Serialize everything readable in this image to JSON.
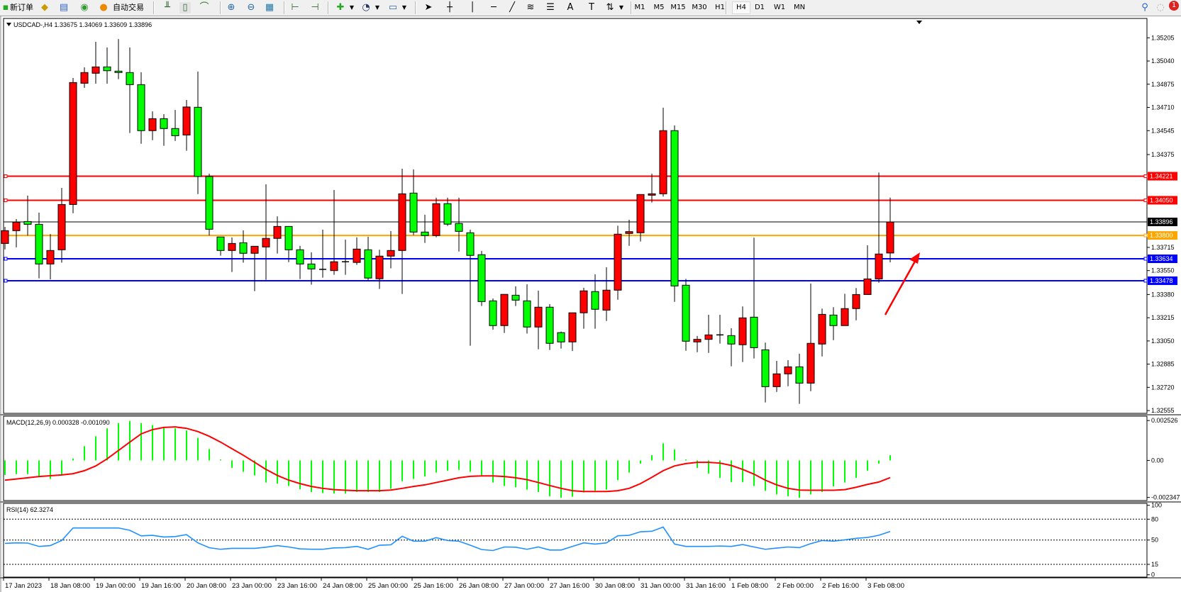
{
  "toolbar": {
    "new_order": "新订单",
    "auto_trading": "自动交易",
    "timeframes": [
      "M1",
      "M5",
      "M15",
      "M30",
      "H1",
      "H4",
      "D1",
      "W1",
      "MN"
    ],
    "active_timeframe": "H4",
    "notification_count": "1",
    "icons": [
      "new-order-icon",
      "gold-icon",
      "history-icon",
      "signal-icon",
      "auto-trading-icon",
      "bar-chart-icon",
      "candlestick-icon",
      "line-chart-icon",
      "zoom-in-icon",
      "zoom-out-icon",
      "tile-windows-icon",
      "chart-shift-icon",
      "autoscroll-icon",
      "indicators-icon",
      "periods-icon",
      "templates-icon",
      "cursor-icon",
      "crosshair-icon",
      "vertical-line-icon",
      "horizontal-line-icon",
      "trendline-icon",
      "fibonacci-icon",
      "fibo-fan-icon",
      "text-icon",
      "text-label-icon",
      "arrows-icon",
      "search-icon",
      "notification-icon"
    ]
  },
  "chart": {
    "header": "USDCAD-,H4  1.33675 1.34069 1.33609 1.33896",
    "symbol": "USDCAD-",
    "timeframe": "H4",
    "bull_color": "#ff0000",
    "bear_color": "#00ff00"
  },
  "chart_data": {
    "type": "candlestick",
    "ohlc_order": [
      "open",
      "high",
      "low",
      "close"
    ],
    "candles": [
      [
        1.33743,
        1.33861,
        1.33701,
        1.33834
      ],
      [
        1.33834,
        1.33916,
        1.33715,
        1.33894
      ],
      [
        1.33899,
        1.34083,
        1.33799,
        1.33879
      ],
      [
        1.33879,
        1.33962,
        1.33495,
        1.33597
      ],
      [
        1.33597,
        1.3381,
        1.33488,
        1.33693
      ],
      [
        1.33698,
        1.34138,
        1.33606,
        1.3402
      ],
      [
        1.3402,
        1.34919,
        1.33958,
        1.34887
      ],
      [
        1.34882,
        1.34995,
        1.34849,
        1.34958
      ],
      [
        1.34953,
        1.35176,
        1.34879,
        1.34998
      ],
      [
        1.34998,
        1.35136,
        1.34879,
        1.34971
      ],
      [
        1.34968,
        1.35196,
        1.34911,
        1.34958
      ],
      [
        1.34958,
        1.35136,
        1.34528,
        1.34872
      ],
      [
        1.34872,
        1.3496,
        1.34452,
        1.34545
      ],
      [
        1.34545,
        1.34682,
        1.34477,
        1.3463
      ],
      [
        1.3463,
        1.34662,
        1.34437,
        1.3456
      ],
      [
        1.3456,
        1.34692,
        1.34472,
        1.34509
      ],
      [
        1.34514,
        1.34763,
        1.34402,
        1.34713
      ],
      [
        1.34711,
        1.34965,
        1.34094,
        1.34219
      ],
      [
        1.34219,
        1.34239,
        1.338,
        1.33844
      ],
      [
        1.33789,
        1.33789,
        1.33656,
        1.33693
      ],
      [
        1.33693,
        1.33785,
        1.3354,
        1.33743
      ],
      [
        1.33748,
        1.33836,
        1.33606,
        1.33673
      ],
      [
        1.33673,
        1.33723,
        1.33404,
        1.33723
      ],
      [
        1.33718,
        1.34163,
        1.33484,
        1.33779
      ],
      [
        1.33779,
        1.33936,
        1.33671,
        1.33864
      ],
      [
        1.33864,
        1.33864,
        1.3361,
        1.33698
      ],
      [
        1.33698,
        1.33726,
        1.3349,
        1.33597
      ],
      [
        1.33597,
        1.3368,
        1.3345,
        1.33562
      ],
      [
        1.33559,
        1.33841,
        1.335,
        1.33559
      ],
      [
        1.3355,
        1.34123,
        1.3352,
        1.33613
      ],
      [
        1.33613,
        1.3377,
        1.3352,
        1.33613
      ],
      [
        1.33608,
        1.33786,
        1.33591,
        1.33703
      ],
      [
        1.33698,
        1.33791,
        1.3348,
        1.33497
      ],
      [
        1.33492,
        1.33698,
        1.3342,
        1.33653
      ],
      [
        1.33653,
        1.33831,
        1.33566,
        1.33693
      ],
      [
        1.33693,
        1.34274,
        1.33384,
        1.34096
      ],
      [
        1.34101,
        1.34269,
        1.33802,
        1.33824
      ],
      [
        1.33824,
        1.33947,
        1.33747,
        1.33799
      ],
      [
        1.33799,
        1.34068,
        1.33787,
        1.34026
      ],
      [
        1.34026,
        1.34068,
        1.33868,
        1.3388
      ],
      [
        1.33885,
        1.34068,
        1.33686,
        1.33829
      ],
      [
        1.33819,
        1.33841,
        1.33016,
        1.33658
      ],
      [
        1.33663,
        1.3369,
        1.33298,
        1.3333
      ],
      [
        1.33335,
        1.33352,
        1.3313,
        1.33159
      ],
      [
        1.33159,
        1.33381,
        1.33107,
        1.33381
      ],
      [
        1.33375,
        1.33438,
        1.33298,
        1.3334
      ],
      [
        1.33335,
        1.33453,
        1.33102,
        1.33149
      ],
      [
        1.33149,
        1.33408,
        1.32991,
        1.3329
      ],
      [
        1.3329,
        1.33312,
        1.32986,
        1.33033
      ],
      [
        1.33109,
        1.33117,
        1.32996,
        1.33043
      ],
      [
        1.33043,
        1.3325,
        1.32978,
        1.3325
      ],
      [
        1.3325,
        1.33428,
        1.33137,
        1.33406
      ],
      [
        1.33401,
        1.33524,
        1.33137,
        1.33275
      ],
      [
        1.33269,
        1.33574,
        1.33192,
        1.33411
      ],
      [
        1.33411,
        1.33869,
        1.33343,
        1.33809
      ],
      [
        1.33814,
        1.33911,
        1.33726,
        1.33827
      ],
      [
        1.33819,
        1.34091,
        1.33757,
        1.34091
      ],
      [
        1.34086,
        1.34239,
        1.34034,
        1.34096
      ],
      [
        1.34096,
        1.34708,
        1.34076,
        1.34545
      ],
      [
        1.34545,
        1.34582,
        1.33328,
        1.33441
      ],
      [
        1.33446,
        1.33491,
        1.3298,
        1.33048
      ],
      [
        1.33043,
        1.33085,
        1.3297,
        1.33061
      ],
      [
        1.33061,
        1.33236,
        1.32965,
        1.33093
      ],
      [
        1.33093,
        1.33236,
        1.33031,
        1.33093
      ],
      [
        1.33088,
        1.3314,
        1.3287,
        1.33028
      ],
      [
        1.33023,
        1.33295,
        1.329,
        1.33214
      ],
      [
        1.33219,
        1.33784,
        1.32925,
        1.33002
      ],
      [
        1.32987,
        1.33038,
        1.32613,
        1.32725
      ],
      [
        1.32725,
        1.32908,
        1.32688,
        1.32816
      ],
      [
        1.32816,
        1.32913,
        1.32728,
        1.32866
      ],
      [
        1.32866,
        1.32959,
        1.32603,
        1.3275
      ],
      [
        1.3275,
        1.33458,
        1.32693,
        1.33033
      ],
      [
        1.33028,
        1.3328,
        1.3294,
        1.33239
      ],
      [
        1.33234,
        1.3329,
        1.33056,
        1.33159
      ],
      [
        1.33159,
        1.33385,
        1.33159,
        1.3328
      ],
      [
        1.3328,
        1.33426,
        1.33197,
        1.3338
      ],
      [
        1.3338,
        1.3373,
        1.3338,
        1.33491
      ],
      [
        1.33491,
        1.34247,
        1.33464,
        1.33668
      ],
      [
        1.33675,
        1.34069,
        1.33609,
        1.33896
      ]
    ],
    "price_ticks": [
      "1.35205",
      "1.35040",
      "1.34875",
      "1.34710",
      "1.34545",
      "1.34375",
      "1.33715",
      "1.33550",
      "1.33380",
      "1.33215",
      "1.33050",
      "1.32885",
      "1.32720",
      "1.32555"
    ],
    "levels": [
      {
        "price": "1.34221",
        "color": "#ff0000"
      },
      {
        "price": "1.34050",
        "color": "#ff0000"
      },
      {
        "price": "1.33800",
        "color": "#ffa500"
      },
      {
        "price": "1.33634",
        "color": "#0000ff"
      },
      {
        "price": "1.33478",
        "color": "#0000ff"
      }
    ],
    "bid": {
      "price": "1.33896",
      "color": "#000000"
    },
    "time_labels": [
      "17 Jan 2023",
      "18 Jan 08:00",
      "19 Jan 00:00",
      "19 Jan 16:00",
      "20 Jan 08:00",
      "23 Jan 00:00",
      "23 Jan 16:00",
      "24 Jan 08:00",
      "25 Jan 00:00",
      "25 Jan 16:00",
      "26 Jan 08:00",
      "27 Jan 00:00",
      "27 Jan 16:00",
      "30 Jan 08:00",
      "31 Jan 00:00",
      "31 Jan 16:00",
      "1 Feb 08:00",
      "2 Feb 00:00",
      "2 Feb 16:00",
      "3 Feb 08:00"
    ],
    "annotation_arrow_color": "#ff0000",
    "macd": {
      "label": "MACD(12,26,9) 0.000328 -0.001090",
      "scale": [
        "0.002526",
        "0.00",
        "-0.002347"
      ],
      "histogram_color": "#00ff00",
      "signal_color": "#ff0000",
      "histogram": [
        -0.00092,
        -0.00087,
        -0.00087,
        -0.00105,
        -0.00117,
        -0.00095,
        0.00011,
        0.0009,
        0.00153,
        0.00203,
        0.00236,
        0.0025,
        0.00236,
        0.00224,
        0.00213,
        0.00203,
        0.0019,
        0.00143,
        0.00072,
        6e-05,
        -0.00047,
        -0.00072,
        -0.00095,
        -0.0014,
        -0.00147,
        -0.00162,
        -0.00182,
        -0.002,
        -0.00207,
        -0.0021,
        -0.0021,
        -0.002,
        -0.002,
        -0.002,
        -0.0018,
        -0.00132,
        -0.00117,
        -0.00102,
        -0.00077,
        -0.00065,
        -0.0006,
        -0.00072,
        -0.00102,
        -0.0014,
        -0.00162,
        -0.0017,
        -0.00185,
        -0.002,
        -0.00227,
        -0.00237,
        -0.0023,
        -0.00203,
        -0.00192,
        -0.00185,
        -0.00125,
        -0.00077,
        -0.0002,
        0.00033,
        0.00108,
        0.0007,
        6e-05,
        -0.00047,
        -0.00083,
        -0.0011,
        -0.00137,
        -0.00137,
        -0.00162,
        -0.00192,
        -0.00215,
        -0.00227,
        -0.00237,
        -0.00215,
        -0.002,
        -0.00165,
        -0.0014,
        -0.0011,
        -0.00065,
        -0.0002,
        0.000328
      ],
      "signal": [
        -0.00125,
        -0.00118,
        -0.0011,
        -0.00102,
        -0.00097,
        -0.00092,
        -0.00084,
        -0.00065,
        -0.00035,
        0.0001,
        0.00063,
        0.00116,
        0.00168,
        0.00195,
        0.00209,
        0.00212,
        0.00203,
        0.00183,
        0.00153,
        0.00116,
        0.00074,
        0.00033,
        -0.00012,
        -0.00057,
        -0.00095,
        -0.00125,
        -0.00147,
        -0.00165,
        -0.00177,
        -0.00185,
        -0.00189,
        -0.00192,
        -0.00192,
        -0.00192,
        -0.00188,
        -0.00177,
        -0.00165,
        -0.00155,
        -0.0014,
        -0.00125,
        -0.0011,
        -0.00101,
        -0.00098,
        -0.00098,
        -0.00102,
        -0.0011,
        -0.00122,
        -0.0014,
        -0.00159,
        -0.00177,
        -0.00192,
        -0.00197,
        -0.00197,
        -0.00197,
        -0.00192,
        -0.00177,
        -0.00147,
        -0.00107,
        -0.00065,
        -0.00035,
        -0.0002,
        -0.00012,
        -0.00012,
        -0.00017,
        -0.00032,
        -0.00057,
        -0.00087,
        -0.00125,
        -0.00155,
        -0.00177,
        -0.00188,
        -0.00189,
        -0.00189,
        -0.00189,
        -0.00185,
        -0.0017,
        -0.00152,
        -0.00137,
        -0.00109
      ]
    },
    "rsi": {
      "label": "RSI(14) 62.3274",
      "scale": [
        "100",
        "80",
        "50",
        "15",
        "0"
      ],
      "levels": [
        80,
        50,
        15
      ],
      "color": "#1e90ff",
      "values": [
        45.2,
        45.9,
        45.6,
        40.8,
        42,
        49.3,
        67.4,
        67.4,
        67.4,
        67.4,
        67.4,
        64,
        56,
        56.8,
        54.4,
        55,
        57.8,
        45.9,
        39,
        36.7,
        38,
        38,
        38,
        39.7,
        42,
        40,
        37.3,
        36.7,
        36.7,
        38.7,
        39,
        40.8,
        36.7,
        42.5,
        43.1,
        55.4,
        48.3,
        48.3,
        53.4,
        49.3,
        48.3,
        42.5,
        36.3,
        34.9,
        40,
        39.7,
        36.7,
        40,
        35.6,
        35.6,
        40.8,
        45.9,
        44.2,
        45.9,
        56.1,
        56.8,
        61.9,
        62.6,
        68.7,
        44.2,
        40.8,
        40.8,
        40.8,
        41.4,
        40.8,
        43.5,
        40,
        36.7,
        38.4,
        40,
        39,
        44.8,
        49.3,
        48.3,
        50.3,
        52.4,
        53.7,
        56.8,
        62.33
      ]
    }
  }
}
